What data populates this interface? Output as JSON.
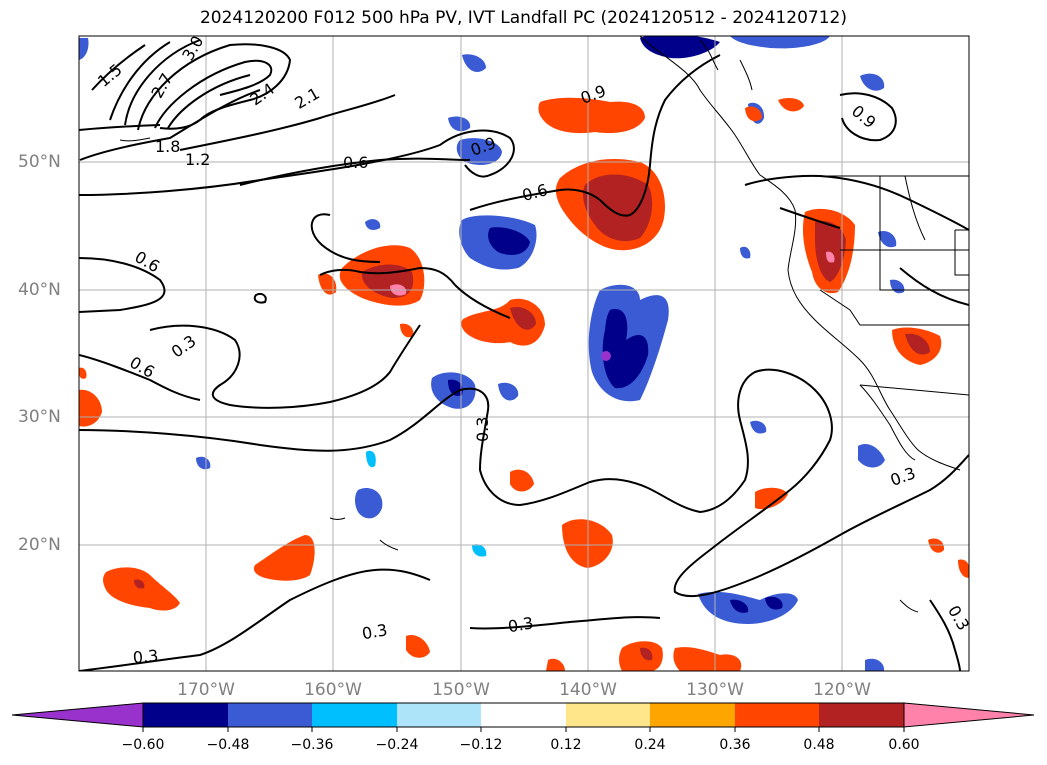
{
  "title": "2024120200 F012 500 hPa PV, IVT Landfall PC (2024120512 - 2024120712)",
  "lon_labels": [
    "170°W",
    "160°W",
    "150°W",
    "140°W",
    "130°W",
    "120°W"
  ],
  "lat_labels": [
    "50°N",
    "40°N",
    "30°N",
    "20°N"
  ],
  "contour_labels": [
    "1.5",
    "3.0",
    "2.7",
    "2.4",
    "2.1",
    "1.8",
    "1.2",
    "0.6",
    "0.9",
    "0.9",
    "0.6",
    "0.6",
    "0.6",
    "0.3",
    "0.3",
    "0.3",
    "0.3",
    "0.3",
    "0.3",
    "0.9",
    "0.3"
  ],
  "colorbar": {
    "ticks": [
      "−0.60",
      "−0.48",
      "−0.36",
      "−0.24",
      "−0.12",
      "0.12",
      "0.24",
      "0.36",
      "0.48",
      "0.60"
    ],
    "colors": [
      "#9932CC",
      "#00008B",
      "#3A5BD4",
      "#00BFFF",
      "#ADE4FA",
      "#FFFFFF",
      "#FFE68A",
      "#FFA500",
      "#FF4500",
      "#B22222",
      "#FF82AB"
    ]
  }
}
